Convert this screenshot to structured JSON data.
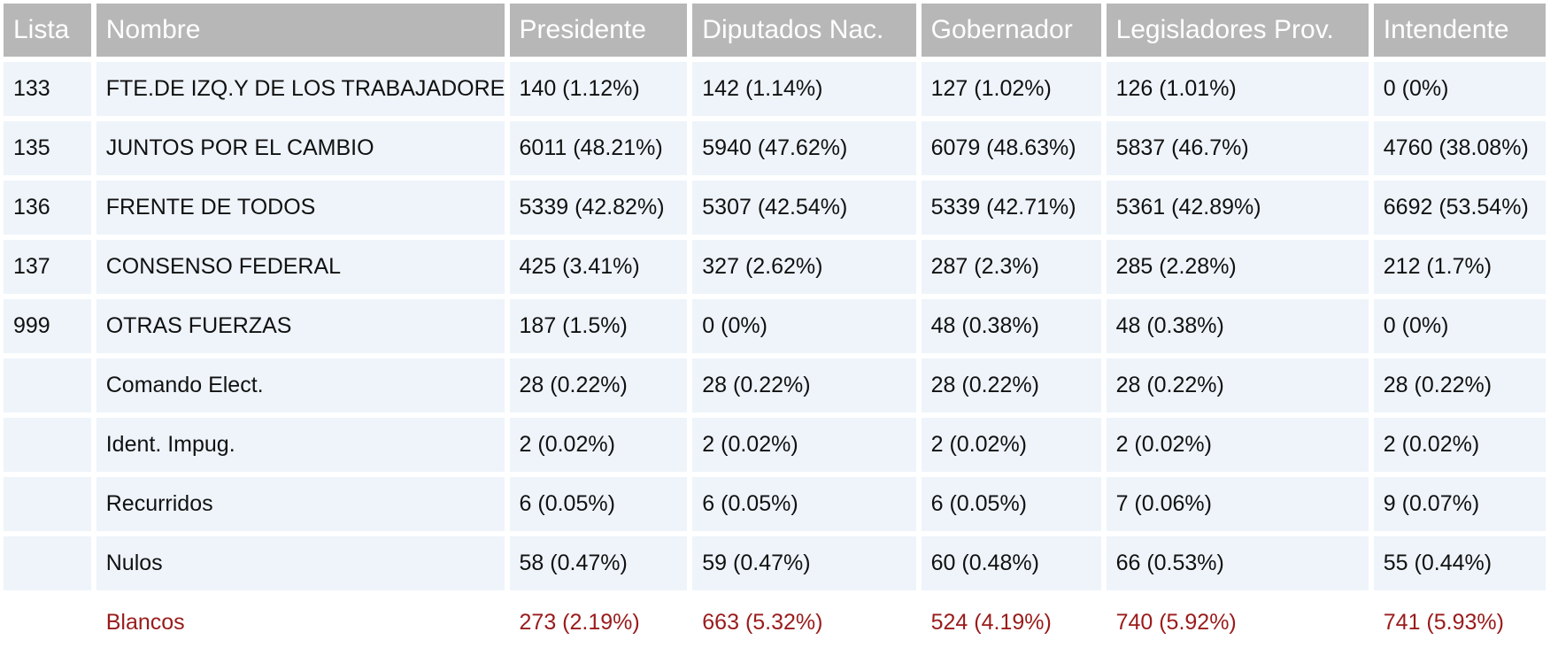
{
  "table": {
    "headers": [
      "Lista",
      "Nombre",
      "Presidente",
      "Diputados Nac.",
      "Gobernador",
      "Legisladores Prov.",
      "Intendente"
    ],
    "rows": [
      {
        "lista": "133",
        "nombre": "FTE.DE IZQ.Y DE LOS TRABAJADORES",
        "presidente": "140 (1.12%)",
        "diputados": "142 (1.14%)",
        "gobernador": "127 (1.02%)",
        "legisladores": "126 (1.01%)",
        "intendente": "0 (0%)"
      },
      {
        "lista": "135",
        "nombre": "JUNTOS POR EL CAMBIO",
        "presidente": "6011 (48.21%)",
        "diputados": "5940 (47.62%)",
        "gobernador": "6079 (48.63%)",
        "legisladores": "5837 (46.7%)",
        "intendente": "4760 (38.08%)"
      },
      {
        "lista": "136",
        "nombre": "FRENTE DE TODOS",
        "presidente": "5339 (42.82%)",
        "diputados": "5307 (42.54%)",
        "gobernador": "5339 (42.71%)",
        "legisladores": "5361 (42.89%)",
        "intendente": "6692 (53.54%)"
      },
      {
        "lista": "137",
        "nombre": "CONSENSO FEDERAL",
        "presidente": "425 (3.41%)",
        "diputados": "327 (2.62%)",
        "gobernador": "287 (2.3%)",
        "legisladores": "285 (2.28%)",
        "intendente": "212 (1.7%)"
      },
      {
        "lista": "999",
        "nombre": "OTRAS FUERZAS",
        "presidente": "187 (1.5%)",
        "diputados": "0 (0%)",
        "gobernador": "48 (0.38%)",
        "legisladores": "48 (0.38%)",
        "intendente": "0 (0%)"
      },
      {
        "lista": "",
        "nombre": "Comando Elect.",
        "presidente": "28 (0.22%)",
        "diputados": "28 (0.22%)",
        "gobernador": "28 (0.22%)",
        "legisladores": "28 (0.22%)",
        "intendente": "28 (0.22%)"
      },
      {
        "lista": "",
        "nombre": "Ident. Impug.",
        "presidente": "2 (0.02%)",
        "diputados": "2 (0.02%)",
        "gobernador": "2 (0.02%)",
        "legisladores": "2 (0.02%)",
        "intendente": "2 (0.02%)"
      },
      {
        "lista": "",
        "nombre": "Recurridos",
        "presidente": "6 (0.05%)",
        "diputados": "6 (0.05%)",
        "gobernador": "6 (0.05%)",
        "legisladores": "7 (0.06%)",
        "intendente": "9 (0.07%)"
      },
      {
        "lista": "",
        "nombre": "Nulos",
        "presidente": "58 (0.47%)",
        "diputados": "59 (0.47%)",
        "gobernador": "60 (0.48%)",
        "legisladores": "66 (0.53%)",
        "intendente": "55 (0.44%)"
      },
      {
        "lista": "",
        "nombre": "Blancos",
        "presidente": "273 (2.19%)",
        "diputados": "663 (5.32%)",
        "gobernador": "524 (4.19%)",
        "legisladores": "740 (5.92%)",
        "intendente": "741 (5.93%)"
      }
    ]
  },
  "colors": {
    "header_bg": "#b7b7b7",
    "header_text": "#ffffff",
    "row_bg": "#eef4fa",
    "blancos_text": "#9a1b1b"
  }
}
